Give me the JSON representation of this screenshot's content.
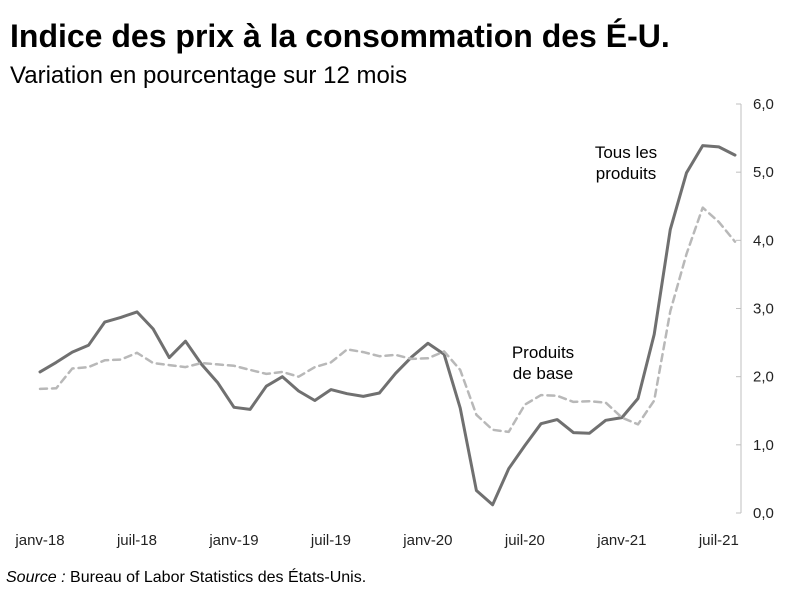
{
  "header": {
    "title": "Indice des prix à la consommation des É-U.",
    "subtitle": "Variation en pourcentage sur 12 mois"
  },
  "footer": {
    "source_label": "Source :",
    "source_text": " Bureau of Labor Statistics des États-Unis."
  },
  "chart_data": {
    "type": "line",
    "title": "Indice des prix à la consommation des É-U.",
    "subtitle": "Variation en pourcentage sur 12 mois",
    "x_tick_labels": [
      "janv-18",
      "juil-18",
      "janv-19",
      "juil-19",
      "janv-20",
      "juil-20",
      "janv-21",
      "juil-21"
    ],
    "y_tick_labels": [
      "0,0",
      "1,0",
      "2,0",
      "3,0",
      "4,0",
      "5,0",
      "6,0"
    ],
    "y_ticks": [
      0,
      1,
      2,
      3,
      4,
      5,
      6
    ],
    "ylim": [
      0,
      6
    ],
    "y_axis_side": "right",
    "grid": false,
    "x_start": "2018-01",
    "x_end": "2021-08",
    "series": [
      {
        "name": "Tous les produits",
        "style": "solid",
        "color": "#707070",
        "values": [
          2.07,
          2.21,
          2.36,
          2.46,
          2.8,
          2.87,
          2.95,
          2.7,
          2.28,
          2.52,
          2.18,
          1.91,
          1.55,
          1.52,
          1.86,
          2.0,
          1.79,
          1.65,
          1.81,
          1.75,
          1.71,
          1.76,
          2.05,
          2.29,
          2.49,
          2.33,
          1.54,
          0.33,
          0.12,
          0.65,
          0.99,
          1.31,
          1.37,
          1.18,
          1.17,
          1.36,
          1.4,
          1.68,
          2.62,
          4.16,
          4.99,
          5.39,
          5.37,
          5.25
        ]
      },
      {
        "name": "Produits de base",
        "style": "dashed",
        "color": "#b8b8b8",
        "values": [
          1.82,
          1.83,
          2.12,
          2.14,
          2.24,
          2.25,
          2.35,
          2.2,
          2.17,
          2.14,
          2.2,
          2.18,
          2.16,
          2.1,
          2.04,
          2.07,
          2.0,
          2.14,
          2.21,
          2.4,
          2.36,
          2.3,
          2.32,
          2.26,
          2.27,
          2.37,
          2.1,
          1.44,
          1.22,
          1.19,
          1.59,
          1.73,
          1.72,
          1.63,
          1.64,
          1.62,
          1.4,
          1.3,
          1.65,
          2.96,
          3.8,
          4.48,
          4.27,
          3.98
        ]
      }
    ],
    "annotations": [
      {
        "lines": [
          "Tous les",
          "produits"
        ],
        "series": "Tous les produits"
      },
      {
        "lines": [
          "Produits",
          "de base"
        ],
        "series": "Produits de base"
      }
    ]
  }
}
